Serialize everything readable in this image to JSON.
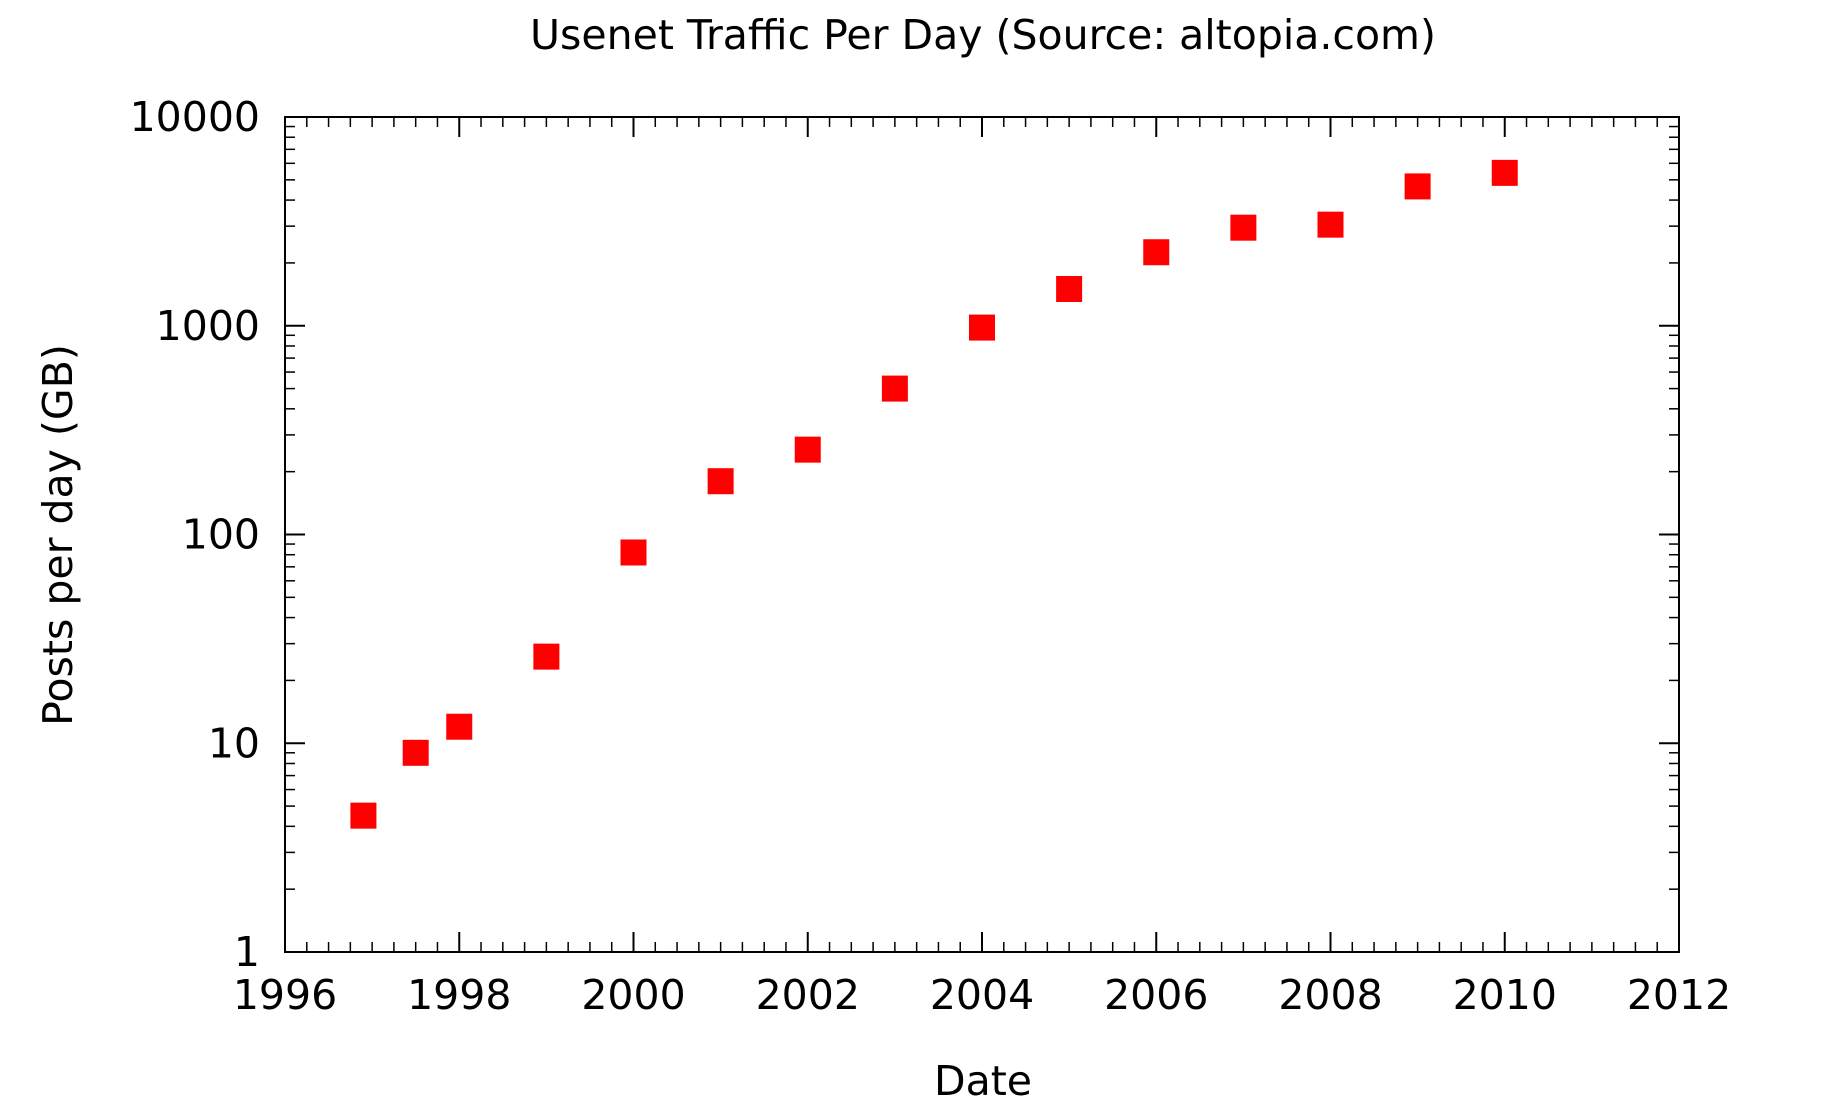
{
  "chart_data": {
    "type": "scatter",
    "title": "Usenet Traffic Per Day (Source: altopia.com)",
    "xlabel": "Date",
    "ylabel": "Posts per day (GB)",
    "xlim": [
      1996,
      2012
    ],
    "ylim": [
      1,
      10000
    ],
    "yscale": "log",
    "grid": false,
    "legend": "none",
    "x_ticks": [
      "1996",
      "1998",
      "2000",
      "2002",
      "2004",
      "2006",
      "2008",
      "2010",
      "2012"
    ],
    "y_ticks": [
      "1",
      "10",
      "100",
      "1000",
      "10000"
    ],
    "marker": "square",
    "marker_color": "#ff0000",
    "series": [
      {
        "x": [
          1996.9,
          1997.5,
          1998.0,
          1999.0,
          2000.0,
          2001.0,
          2002.0,
          2003.0,
          2004.0,
          2005.0,
          2006.0,
          2007.0,
          2008.0,
          2009.0,
          2010.0
        ],
        "y": [
          4.5,
          9,
          12,
          26,
          82,
          180,
          255,
          500,
          980,
          1500,
          2250,
          2950,
          3050,
          4650,
          5400
        ]
      }
    ]
  }
}
